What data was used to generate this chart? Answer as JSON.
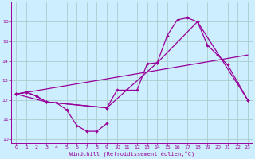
{
  "title": "",
  "xlabel": "Windchill (Refroidissement éolien,°C)",
  "background_color": "#cceeff",
  "grid_color": "#aacccc",
  "line_color": "#990099",
  "xlim": [
    -0.5,
    23.5
  ],
  "ylim": [
    9.8,
    17.0
  ],
  "yticks": [
    10,
    11,
    12,
    13,
    14,
    15,
    16
  ],
  "xticks": [
    0,
    1,
    2,
    3,
    4,
    5,
    6,
    7,
    8,
    9,
    10,
    11,
    12,
    13,
    14,
    15,
    16,
    17,
    18,
    19,
    20,
    21,
    22,
    23
  ],
  "line1_x": [
    0,
    1,
    2,
    3,
    4,
    5,
    6,
    7,
    8,
    9
  ],
  "line1_y": [
    12.3,
    12.4,
    12.2,
    11.9,
    11.85,
    11.5,
    10.7,
    10.4,
    10.4,
    10.8
  ],
  "line2_x": [
    0,
    1,
    2,
    3,
    9,
    10,
    11,
    12,
    13,
    14,
    15,
    16,
    17,
    18,
    19,
    20,
    21,
    22,
    23
  ],
  "line2_y": [
    12.3,
    12.4,
    12.2,
    11.9,
    11.6,
    12.5,
    12.5,
    12.5,
    13.85,
    13.9,
    15.3,
    16.1,
    16.2,
    16.0,
    14.8,
    14.3,
    13.8,
    12.9,
    12.0
  ],
  "line3_x": [
    0,
    23
  ],
  "line3_y": [
    12.3,
    14.3
  ],
  "line4_x": [
    0,
    3,
    9,
    14,
    18,
    23
  ],
  "line4_y": [
    12.3,
    11.9,
    11.6,
    13.9,
    16.0,
    12.0
  ]
}
